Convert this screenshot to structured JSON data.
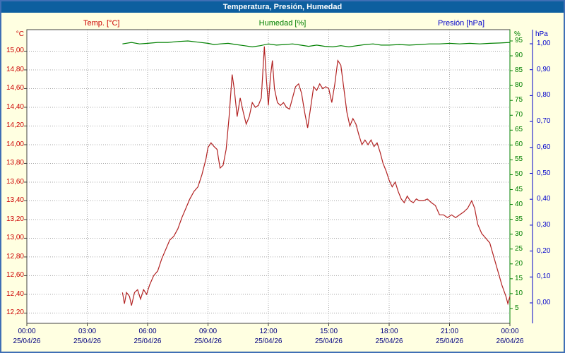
{
  "window_title": "Temperatura, Presión, Humedad",
  "legend": {
    "temp": "Temp. [°C]",
    "humidity": "Humedad [%]",
    "pressure": "Presión [hPa]"
  },
  "colors": {
    "titlebar": "#0d5f9f",
    "titlebar_text": "#ffffff",
    "background": "#ffffe1",
    "border": "#3f6fb5",
    "plot_bg": "#ffffff",
    "plot_border": "#404040",
    "grid": "#a8a8a8",
    "temp": "#b22222",
    "temp_label": "#cc0000",
    "humidity": "#008000",
    "pressure": "#0000cc",
    "time_label": "#000080"
  },
  "chart_data": {
    "type": "line",
    "title": "Temperatura, Presión, Humedad",
    "grid": "dotted",
    "legend_position": "top",
    "x_axis": {
      "min": 0,
      "max": 24,
      "ticks": [
        {
          "label": "00:00",
          "h": 0,
          "date": "25/04/26"
        },
        {
          "label": "03:00",
          "h": 3,
          "date": "25/04/26"
        },
        {
          "label": "06:00",
          "h": 6,
          "date": "25/04/26"
        },
        {
          "label": "09:00",
          "h": 9,
          "date": "25/04/26"
        },
        {
          "label": "12:00",
          "h": 12,
          "date": "25/04/26"
        },
        {
          "label": "15:00",
          "h": 15,
          "date": "25/04/26"
        },
        {
          "label": "18:00",
          "h": 18,
          "date": "25/04/26"
        },
        {
          "label": "21:00",
          "h": 21,
          "date": "25/04/26"
        },
        {
          "label": "00:00",
          "h": 24,
          "date": "26/04/26"
        }
      ]
    },
    "y_axes": {
      "temp": {
        "unit": "°C",
        "side": "left",
        "min": 12.09,
        "max": 15.23,
        "ticks": [
          {
            "label": "15,00",
            "v": 15.0
          },
          {
            "label": "14,80",
            "v": 14.8
          },
          {
            "label": "14,60",
            "v": 14.6
          },
          {
            "label": "14,40",
            "v": 14.4
          },
          {
            "label": "14,20",
            "v": 14.2
          },
          {
            "label": "14,00",
            "v": 14.0
          },
          {
            "label": "13,80",
            "v": 13.8
          },
          {
            "label": "13,60",
            "v": 13.6
          },
          {
            "label": "13,40",
            "v": 13.4
          },
          {
            "label": "13,20",
            "v": 13.2
          },
          {
            "label": "13,00",
            "v": 13.0
          },
          {
            "label": "12,80",
            "v": 12.8
          },
          {
            "label": "12,60",
            "v": 12.6
          },
          {
            "label": "12,40",
            "v": 12.4
          },
          {
            "label": "12,20",
            "v": 12.2
          }
        ]
      },
      "humidity": {
        "unit": "%",
        "side": "right-inner",
        "min": 0,
        "max": 98.8,
        "ticks": [
          {
            "label": "95",
            "v": 95
          },
          {
            "label": "90",
            "v": 90
          },
          {
            "label": "85",
            "v": 85
          },
          {
            "label": "80",
            "v": 80
          },
          {
            "label": "75",
            "v": 75
          },
          {
            "label": "70",
            "v": 70
          },
          {
            "label": "65",
            "v": 65
          },
          {
            "label": "60",
            "v": 60
          },
          {
            "label": "55",
            "v": 55
          },
          {
            "label": "50",
            "v": 50
          },
          {
            "label": "45",
            "v": 45
          },
          {
            "label": "40",
            "v": 40
          },
          {
            "label": "35",
            "v": 35
          },
          {
            "label": "30",
            "v": 30
          },
          {
            "label": "25",
            "v": 25
          },
          {
            "label": "20",
            "v": 20
          },
          {
            "label": "15",
            "v": 15
          },
          {
            "label": "10",
            "v": 10
          },
          {
            "label": "5",
            "v": 5
          }
        ]
      },
      "pressure": {
        "unit": "hPa",
        "side": "right-outer",
        "min": -0.079,
        "max": 1.0545,
        "ticks": [
          {
            "label": "1,00",
            "v": 1.0
          },
          {
            "label": "0,90",
            "v": 0.9
          },
          {
            "label": "0,80",
            "v": 0.8
          },
          {
            "label": "0,70",
            "v": 0.7
          },
          {
            "label": "0,60",
            "v": 0.6
          },
          {
            "label": "0,50",
            "v": 0.5
          },
          {
            "label": "0,40",
            "v": 0.4
          },
          {
            "label": "0,30",
            "v": 0.3
          },
          {
            "label": "0,20",
            "v": 0.2
          },
          {
            "label": "0,10",
            "v": 0.1
          },
          {
            "label": "0,00",
            "v": 0.0
          }
        ]
      }
    },
    "series": [
      {
        "name": "Humedad [%]",
        "axis": "humidity",
        "color": "#008000",
        "points": [
          [
            4.75,
            94
          ],
          [
            5.2,
            94.5
          ],
          [
            5.6,
            94
          ],
          [
            6.0,
            94.2
          ],
          [
            6.5,
            94.5
          ],
          [
            7.0,
            94.5
          ],
          [
            7.5,
            94.8
          ],
          [
            8.0,
            95
          ],
          [
            8.5,
            94.6
          ],
          [
            9.0,
            94.2
          ],
          [
            9.3,
            93.8
          ],
          [
            9.6,
            94
          ],
          [
            10.0,
            94.2
          ],
          [
            10.4,
            93.8
          ],
          [
            10.8,
            93.4
          ],
          [
            11.2,
            93
          ],
          [
            11.6,
            93.4
          ],
          [
            12.0,
            94
          ],
          [
            12.4,
            93.6
          ],
          [
            12.8,
            93.8
          ],
          [
            13.2,
            94
          ],
          [
            13.6,
            93.6
          ],
          [
            14.0,
            93.2
          ],
          [
            14.4,
            93.6
          ],
          [
            14.8,
            93.2
          ],
          [
            15.2,
            93
          ],
          [
            15.6,
            93.4
          ],
          [
            16.0,
            93
          ],
          [
            16.4,
            93.4
          ],
          [
            16.8,
            93.8
          ],
          [
            17.2,
            94
          ],
          [
            17.6,
            93.6
          ],
          [
            18.0,
            93.6
          ],
          [
            18.5,
            93.8
          ],
          [
            19.0,
            93.6
          ],
          [
            19.5,
            93.8
          ],
          [
            20.0,
            94
          ],
          [
            20.5,
            94
          ],
          [
            21.0,
            94.2
          ],
          [
            21.5,
            94
          ],
          [
            22.0,
            94.2
          ],
          [
            22.5,
            94
          ],
          [
            23.0,
            94.2
          ],
          [
            23.5,
            94.3
          ],
          [
            24.0,
            94.5
          ]
        ]
      },
      {
        "name": "Temp. [°C]",
        "axis": "temp",
        "color": "#b22222",
        "points": [
          [
            4.75,
            12.42
          ],
          [
            4.85,
            12.3
          ],
          [
            4.95,
            12.42
          ],
          [
            5.1,
            12.38
          ],
          [
            5.2,
            12.28
          ],
          [
            5.35,
            12.42
          ],
          [
            5.5,
            12.45
          ],
          [
            5.65,
            12.35
          ],
          [
            5.8,
            12.45
          ],
          [
            5.95,
            12.4
          ],
          [
            6.1,
            12.5
          ],
          [
            6.3,
            12.6
          ],
          [
            6.5,
            12.65
          ],
          [
            6.7,
            12.78
          ],
          [
            6.9,
            12.88
          ],
          [
            7.1,
            12.98
          ],
          [
            7.3,
            13.02
          ],
          [
            7.5,
            13.1
          ],
          [
            7.7,
            13.22
          ],
          [
            7.9,
            13.32
          ],
          [
            8.1,
            13.42
          ],
          [
            8.3,
            13.5
          ],
          [
            8.5,
            13.55
          ],
          [
            8.7,
            13.68
          ],
          [
            8.9,
            13.85
          ],
          [
            9.0,
            13.97
          ],
          [
            9.15,
            14.02
          ],
          [
            9.3,
            13.98
          ],
          [
            9.45,
            13.95
          ],
          [
            9.6,
            13.75
          ],
          [
            9.75,
            13.78
          ],
          [
            9.9,
            13.95
          ],
          [
            10.05,
            14.3
          ],
          [
            10.2,
            14.75
          ],
          [
            10.3,
            14.6
          ],
          [
            10.45,
            14.3
          ],
          [
            10.6,
            14.5
          ],
          [
            10.75,
            14.35
          ],
          [
            10.9,
            14.22
          ],
          [
            11.05,
            14.3
          ],
          [
            11.2,
            14.45
          ],
          [
            11.35,
            14.4
          ],
          [
            11.5,
            14.42
          ],
          [
            11.65,
            14.5
          ],
          [
            11.8,
            15.05
          ],
          [
            11.9,
            14.7
          ],
          [
            12.0,
            14.42
          ],
          [
            12.1,
            14.72
          ],
          [
            12.2,
            14.9
          ],
          [
            12.3,
            14.6
          ],
          [
            12.45,
            14.45
          ],
          [
            12.6,
            14.42
          ],
          [
            12.75,
            14.45
          ],
          [
            12.9,
            14.4
          ],
          [
            13.05,
            14.38
          ],
          [
            13.2,
            14.5
          ],
          [
            13.35,
            14.62
          ],
          [
            13.5,
            14.65
          ],
          [
            13.65,
            14.55
          ],
          [
            13.8,
            14.35
          ],
          [
            13.95,
            14.18
          ],
          [
            14.1,
            14.4
          ],
          [
            14.25,
            14.62
          ],
          [
            14.4,
            14.58
          ],
          [
            14.55,
            14.65
          ],
          [
            14.7,
            14.6
          ],
          [
            14.85,
            14.62
          ],
          [
            15.0,
            14.6
          ],
          [
            15.15,
            14.45
          ],
          [
            15.3,
            14.65
          ],
          [
            15.45,
            14.9
          ],
          [
            15.6,
            14.85
          ],
          [
            15.75,
            14.6
          ],
          [
            15.9,
            14.35
          ],
          [
            16.05,
            14.2
          ],
          [
            16.2,
            14.28
          ],
          [
            16.35,
            14.22
          ],
          [
            16.5,
            14.1
          ],
          [
            16.65,
            14.0
          ],
          [
            16.8,
            14.05
          ],
          [
            16.95,
            14.0
          ],
          [
            17.1,
            14.05
          ],
          [
            17.25,
            13.98
          ],
          [
            17.4,
            14.02
          ],
          [
            17.55,
            13.92
          ],
          [
            17.7,
            13.8
          ],
          [
            17.85,
            13.72
          ],
          [
            18.0,
            13.62
          ],
          [
            18.15,
            13.55
          ],
          [
            18.3,
            13.6
          ],
          [
            18.45,
            13.5
          ],
          [
            18.6,
            13.42
          ],
          [
            18.75,
            13.38
          ],
          [
            18.9,
            13.45
          ],
          [
            19.05,
            13.4
          ],
          [
            19.2,
            13.38
          ],
          [
            19.35,
            13.42
          ],
          [
            19.5,
            13.4
          ],
          [
            19.7,
            13.4
          ],
          [
            19.9,
            13.42
          ],
          [
            20.1,
            13.38
          ],
          [
            20.3,
            13.35
          ],
          [
            20.5,
            13.25
          ],
          [
            20.7,
            13.25
          ],
          [
            20.9,
            13.22
          ],
          [
            21.1,
            13.25
          ],
          [
            21.3,
            13.22
          ],
          [
            21.5,
            13.25
          ],
          [
            21.7,
            13.28
          ],
          [
            21.9,
            13.32
          ],
          [
            22.1,
            13.4
          ],
          [
            22.25,
            13.32
          ],
          [
            22.4,
            13.15
          ],
          [
            22.6,
            13.05
          ],
          [
            22.8,
            13.0
          ],
          [
            23.0,
            12.95
          ],
          [
            23.2,
            12.8
          ],
          [
            23.4,
            12.65
          ],
          [
            23.6,
            12.5
          ],
          [
            23.8,
            12.38
          ],
          [
            23.9,
            12.3
          ],
          [
            24.0,
            12.38
          ]
        ]
      }
    ]
  }
}
